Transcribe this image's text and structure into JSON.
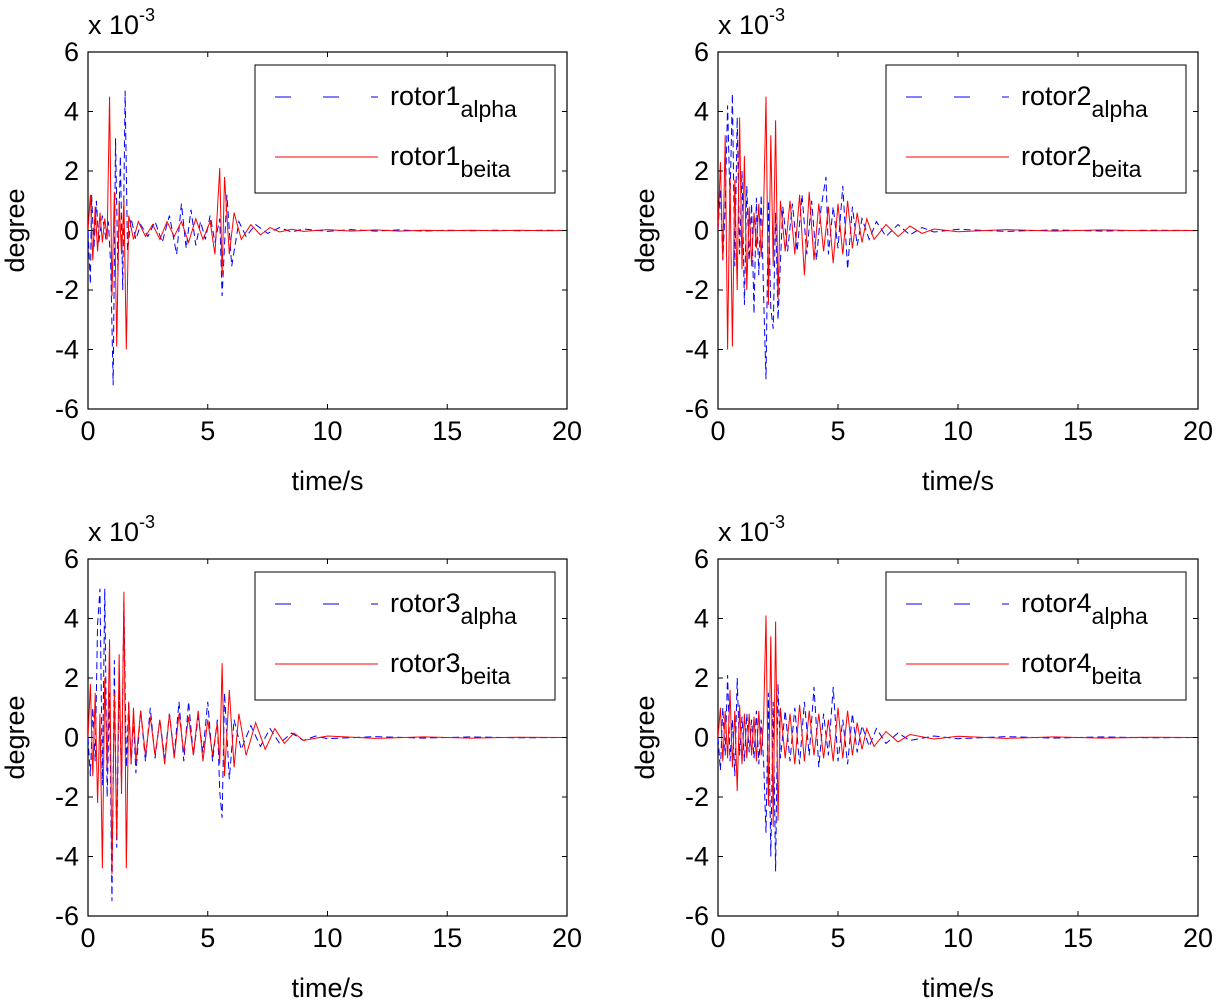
{
  "colors": {
    "alpha": "#0000ff",
    "beita": "#ff0000",
    "axes": "#000000",
    "background": "#ffffff"
  },
  "chart_data": [
    {
      "type": "line",
      "title": "",
      "xlabel": "time/s",
      "ylabel": "degree",
      "exponent_prefix": "x 10",
      "exponent_power": "-3",
      "xlim": [
        0,
        20
      ],
      "ylim": [
        -6,
        6
      ],
      "x_ticks": [
        "0",
        "5",
        "10",
        "15",
        "20"
      ],
      "y_ticks": [
        "-6",
        "-4",
        "-2",
        "0",
        "2",
        "4",
        "6"
      ],
      "grid": false,
      "legend_position": "top-right",
      "series": [
        {
          "name": "rotor1 alpha",
          "label_main": "rotor1",
          "label_sub": "alpha",
          "style": "dashed",
          "color": "#0000ff",
          "x": [
            0.0,
            0.1,
            0.15,
            0.25,
            0.35,
            0.45,
            0.6,
            0.75,
            0.85,
            0.95,
            1.05,
            1.15,
            1.25,
            1.35,
            1.45,
            1.55,
            1.65,
            1.8,
            2.0,
            2.2,
            2.5,
            2.8,
            3.1,
            3.4,
            3.7,
            3.9,
            4.1,
            4.3,
            4.5,
            4.7,
            4.9,
            5.1,
            5.3,
            5.5,
            5.6,
            5.8,
            6.0,
            6.3,
            6.6,
            7.0,
            7.5,
            8.0,
            8.5,
            9.0,
            10.0,
            11.0,
            12.0,
            13.0,
            14.0,
            15.0,
            16.0,
            17.0,
            18.0,
            19.0,
            20.0
          ],
          "y": [
            0.0,
            -1.8,
            1.2,
            -0.6,
            1.0,
            -0.4,
            0.5,
            -0.3,
            0.3,
            -1.2,
            -5.2,
            3.1,
            -1.5,
            2.5,
            -2.0,
            4.7,
            -0.7,
            0.4,
            -0.3,
            0.2,
            -0.2,
            0.3,
            -0.4,
            0.5,
            -0.8,
            0.9,
            -0.6,
            0.7,
            -0.5,
            0.3,
            -0.3,
            0.5,
            -0.4,
            0.4,
            -2.2,
            1.2,
            -1.2,
            0.3,
            -0.2,
            0.2,
            -0.1,
            0.1,
            -0.05,
            0.05,
            -0.03,
            0.03,
            -0.02,
            0.02,
            -0.02,
            0.01,
            -0.01,
            0.01,
            -0.01,
            0.01,
            0.0
          ]
        },
        {
          "name": "rotor1 beita",
          "label_main": "rotor1",
          "label_sub": "beita",
          "style": "solid",
          "color": "#ff0000",
          "x": [
            0.0,
            0.1,
            0.2,
            0.3,
            0.4,
            0.5,
            0.6,
            0.7,
            0.8,
            0.9,
            1.0,
            1.1,
            1.2,
            1.3,
            1.4,
            1.5,
            1.6,
            1.7,
            1.9,
            2.1,
            2.4,
            2.7,
            3.0,
            3.3,
            3.6,
            3.9,
            4.2,
            4.5,
            4.8,
            5.1,
            5.3,
            5.5,
            5.6,
            5.7,
            5.9,
            6.1,
            6.4,
            6.8,
            7.2,
            7.6,
            8.0,
            8.5,
            9.0,
            10.0,
            11.0,
            12.0,
            13.0,
            14.0,
            15.0,
            16.0,
            17.0,
            18.0,
            19.0,
            20.0
          ],
          "y": [
            0.0,
            1.2,
            -1.0,
            0.8,
            -0.7,
            0.6,
            -0.4,
            0.4,
            -0.3,
            4.5,
            -2.2,
            1.3,
            -3.9,
            1.0,
            -0.8,
            1.0,
            -4.0,
            0.5,
            -0.3,
            0.3,
            -0.2,
            0.2,
            -0.3,
            0.3,
            -0.2,
            0.3,
            -0.4,
            0.4,
            -0.3,
            0.3,
            -0.8,
            2.1,
            -1.5,
            1.8,
            -0.8,
            0.6,
            -0.3,
            0.2,
            -0.15,
            0.1,
            -0.05,
            0.04,
            -0.03,
            0.03,
            -0.02,
            0.02,
            -0.02,
            0.01,
            -0.01,
            0.01,
            -0.01,
            0.01,
            -0.01,
            0.0
          ]
        }
      ]
    },
    {
      "type": "line",
      "title": "",
      "xlabel": "time/s",
      "ylabel": "degree",
      "exponent_prefix": "x 10",
      "exponent_power": "-3",
      "xlim": [
        0,
        20
      ],
      "ylim": [
        -6,
        6
      ],
      "x_ticks": [
        "0",
        "5",
        "10",
        "15",
        "20"
      ],
      "y_ticks": [
        "-6",
        "-4",
        "-2",
        "0",
        "2",
        "4",
        "6"
      ],
      "grid": false,
      "legend_position": "top-right",
      "series": [
        {
          "name": "rotor2 alpha",
          "label_main": "rotor2",
          "label_sub": "alpha",
          "style": "dashed",
          "color": "#0000ff",
          "x": [
            0.0,
            0.1,
            0.2,
            0.3,
            0.4,
            0.5,
            0.6,
            0.7,
            0.8,
            0.9,
            1.0,
            1.1,
            1.2,
            1.3,
            1.4,
            1.5,
            1.6,
            1.7,
            1.8,
            1.9,
            2.0,
            2.1,
            2.2,
            2.3,
            2.4,
            2.5,
            2.7,
            2.9,
            3.1,
            3.3,
            3.5,
            3.7,
            3.9,
            4.1,
            4.3,
            4.5,
            4.6,
            4.8,
            5.0,
            5.2,
            5.4,
            5.6,
            5.8,
            6.0,
            6.3,
            6.6,
            7.0,
            7.5,
            8.0,
            8.5,
            9.0,
            10.0,
            12.0,
            14.0,
            16.0,
            18.0,
            20.0
          ],
          "y": [
            0.0,
            1.4,
            -1.0,
            0.8,
            4.2,
            1.0,
            4.6,
            -1.2,
            3.8,
            -0.8,
            2.0,
            -2.5,
            1.5,
            -1.0,
            0.9,
            -2.8,
            1.1,
            -1.5,
            1.2,
            -2.2,
            -5.0,
            1.0,
            -2.6,
            -3.3,
            0.6,
            -3.0,
            0.8,
            -0.7,
            0.9,
            -0.7,
            1.2,
            -0.8,
            1.0,
            -1.0,
            0.8,
            1.8,
            -0.8,
            0.8,
            -0.6,
            1.5,
            -1.3,
            0.8,
            -0.5,
            0.4,
            -0.3,
            0.3,
            -0.2,
            0.2,
            -0.15,
            0.1,
            -0.05,
            0.04,
            -0.03,
            0.02,
            -0.02,
            0.01,
            0.0
          ]
        },
        {
          "name": "rotor2 beita",
          "label_main": "rotor2",
          "label_sub": "beita",
          "style": "solid",
          "color": "#ff0000",
          "x": [
            0.0,
            0.1,
            0.2,
            0.3,
            0.4,
            0.5,
            0.6,
            0.7,
            0.8,
            0.9,
            1.0,
            1.1,
            1.2,
            1.3,
            1.4,
            1.5,
            1.6,
            1.7,
            1.8,
            1.9,
            2.0,
            2.1,
            2.2,
            2.3,
            2.4,
            2.5,
            2.6,
            2.8,
            3.0,
            3.2,
            3.4,
            3.6,
            3.8,
            4.0,
            4.2,
            4.4,
            4.6,
            4.8,
            5.0,
            5.2,
            5.4,
            5.6,
            5.8,
            6.0,
            6.2,
            6.5,
            7.0,
            7.5,
            8.0,
            8.5,
            9.0,
            10.0,
            12.0,
            14.0,
            16.0,
            18.0,
            20.0
          ],
          "y": [
            0.0,
            2.3,
            -1.0,
            3.2,
            -4.0,
            1.8,
            -3.9,
            1.7,
            -2.0,
            3.8,
            -1.3,
            2.5,
            -2.0,
            0.8,
            -1.2,
            0.6,
            -0.6,
            0.9,
            -0.9,
            0.7,
            4.5,
            -2.5,
            3.2,
            -1.2,
            3.7,
            -2.3,
            1.0,
            -0.7,
            1.0,
            -0.8,
            1.2,
            -1.5,
            1.3,
            -1.0,
            0.9,
            -0.7,
            0.8,
            -1.1,
            0.9,
            -0.8,
            1.0,
            -0.6,
            0.6,
            -0.4,
            0.4,
            -0.3,
            0.2,
            -0.2,
            0.15,
            -0.1,
            0.05,
            -0.04,
            0.03,
            -0.02,
            0.02,
            -0.01,
            0.0
          ]
        }
      ]
    },
    {
      "type": "line",
      "title": "",
      "xlabel": "time/s",
      "ylabel": "degree",
      "exponent_prefix": "x 10",
      "exponent_power": "-3",
      "xlim": [
        0,
        20
      ],
      "ylim": [
        -6,
        6
      ],
      "x_ticks": [
        "0",
        "5",
        "10",
        "15",
        "20"
      ],
      "y_ticks": [
        "-6",
        "-4",
        "-2",
        "0",
        "2",
        "4",
        "6"
      ],
      "grid": false,
      "legend_position": "top-right",
      "series": [
        {
          "name": "rotor3 alpha",
          "label_main": "rotor3",
          "label_sub": "alpha",
          "style": "dashed",
          "color": "#0000ff",
          "x": [
            0.0,
            0.1,
            0.2,
            0.3,
            0.4,
            0.5,
            0.6,
            0.7,
            0.8,
            0.9,
            1.0,
            1.1,
            1.2,
            1.3,
            1.4,
            1.5,
            1.6,
            1.7,
            1.8,
            1.9,
            2.0,
            2.2,
            2.4,
            2.6,
            2.8,
            3.0,
            3.2,
            3.4,
            3.6,
            3.8,
            4.0,
            4.2,
            4.4,
            4.6,
            4.8,
            5.0,
            5.2,
            5.4,
            5.5,
            5.6,
            5.7,
            5.9,
            6.1,
            6.4,
            6.8,
            7.2,
            7.6,
            8.0,
            8.5,
            9.0,
            9.5,
            10.0,
            12.0,
            14.0,
            16.0,
            18.0,
            20.0
          ],
          "y": [
            0.0,
            -1.3,
            1.0,
            -0.8,
            3.8,
            5.0,
            -1.6,
            5.0,
            -2.0,
            1.5,
            -5.5,
            2.6,
            -3.7,
            1.8,
            -1.5,
            4.6,
            -1.0,
            1.2,
            -0.9,
            0.6,
            -1.2,
            0.9,
            -0.8,
            1.0,
            -0.7,
            0.6,
            -0.7,
            0.8,
            -0.6,
            1.2,
            -0.8,
            1.2,
            -0.6,
            0.7,
            -0.5,
            1.2,
            -0.8,
            0.6,
            -1.8,
            -2.7,
            1.5,
            -1.4,
            0.6,
            -0.4,
            0.4,
            -0.3,
            0.3,
            -0.2,
            0.15,
            -0.1,
            0.05,
            -0.04,
            0.03,
            -0.02,
            0.02,
            -0.01,
            0.0
          ]
        },
        {
          "name": "rotor3 beita",
          "label_main": "rotor3",
          "label_sub": "beita",
          "style": "solid",
          "color": "#ff0000",
          "x": [
            0.0,
            0.1,
            0.2,
            0.3,
            0.4,
            0.5,
            0.6,
            0.7,
            0.8,
            0.9,
            1.0,
            1.1,
            1.2,
            1.3,
            1.4,
            1.5,
            1.6,
            1.7,
            1.8,
            1.9,
            2.0,
            2.2,
            2.4,
            2.6,
            2.8,
            3.0,
            3.2,
            3.4,
            3.6,
            3.8,
            4.0,
            4.2,
            4.4,
            4.6,
            4.8,
            5.0,
            5.2,
            5.4,
            5.5,
            5.6,
            5.7,
            5.9,
            6.1,
            6.3,
            6.6,
            7.0,
            7.4,
            7.8,
            8.2,
            8.6,
            9.0,
            10.0,
            12.0,
            14.0,
            16.0,
            18.0,
            20.0
          ],
          "y": [
            0.0,
            1.8,
            -1.3,
            1.5,
            -2.2,
            0.8,
            -4.4,
            2.0,
            -1.0,
            3.3,
            -4.6,
            1.5,
            -3.4,
            2.8,
            -1.9,
            4.9,
            -4.4,
            1.2,
            -0.9,
            1.0,
            -0.8,
            0.9,
            -0.6,
            0.7,
            -0.6,
            0.6,
            -0.9,
            0.8,
            -0.7,
            0.8,
            -0.5,
            0.7,
            -0.6,
            0.9,
            -0.8,
            0.6,
            -0.6,
            0.5,
            -0.9,
            2.5,
            -1.3,
            1.6,
            -1.0,
            0.8,
            -0.6,
            0.5,
            -0.4,
            0.3,
            -0.2,
            0.15,
            -0.1,
            0.05,
            -0.03,
            0.02,
            -0.02,
            0.01,
            0.0
          ]
        }
      ]
    },
    {
      "type": "line",
      "title": "",
      "xlabel": "time/s",
      "ylabel": "degree",
      "exponent_prefix": "x 10",
      "exponent_power": "-3",
      "xlim": [
        0,
        20
      ],
      "ylim": [
        -6,
        6
      ],
      "x_ticks": [
        "0",
        "5",
        "10",
        "15",
        "20"
      ],
      "y_ticks": [
        "-6",
        "-4",
        "-2",
        "0",
        "2",
        "4",
        "6"
      ],
      "grid": false,
      "legend_position": "top-right",
      "series": [
        {
          "name": "rotor4 alpha",
          "label_main": "rotor4",
          "label_sub": "alpha",
          "style": "dashed",
          "color": "#0000ff",
          "x": [
            0.0,
            0.1,
            0.2,
            0.3,
            0.4,
            0.5,
            0.6,
            0.7,
            0.8,
            0.9,
            1.0,
            1.1,
            1.2,
            1.3,
            1.4,
            1.5,
            1.6,
            1.7,
            1.8,
            1.9,
            2.0,
            2.1,
            2.2,
            2.3,
            2.4,
            2.5,
            2.6,
            2.8,
            3.0,
            3.2,
            3.4,
            3.6,
            3.8,
            4.0,
            4.2,
            4.4,
            4.6,
            4.8,
            5.0,
            5.2,
            5.4,
            5.6,
            5.8,
            6.0,
            6.3,
            6.6,
            7.0,
            7.5,
            8.0,
            9.0,
            10.0,
            12.0,
            14.0,
            16.0,
            18.0,
            20.0
          ],
          "y": [
            0.0,
            -1.1,
            1.0,
            -0.6,
            2.1,
            -0.8,
            0.6,
            -1.3,
            2.0,
            -0.6,
            0.7,
            -0.8,
            0.8,
            -0.5,
            0.6,
            -0.7,
            0.9,
            -0.9,
            0.6,
            -0.8,
            -3.2,
            1.5,
            -4.0,
            1.2,
            -4.5,
            1.8,
            -0.7,
            0.9,
            -0.8,
            1.0,
            -0.9,
            1.2,
            -0.6,
            1.7,
            -1.0,
            0.8,
            -0.6,
            1.7,
            -0.8,
            0.6,
            -0.9,
            0.8,
            -0.5,
            0.4,
            -0.3,
            0.3,
            -0.2,
            0.15,
            -0.1,
            0.05,
            -0.04,
            0.03,
            -0.02,
            0.02,
            -0.01,
            0.0
          ]
        },
        {
          "name": "rotor4 beita",
          "label_main": "rotor4",
          "label_sub": "beita",
          "style": "solid",
          "color": "#ff0000",
          "x": [
            0.0,
            0.1,
            0.2,
            0.3,
            0.4,
            0.5,
            0.6,
            0.7,
            0.8,
            0.9,
            1.0,
            1.1,
            1.2,
            1.3,
            1.4,
            1.5,
            1.6,
            1.7,
            1.8,
            1.9,
            2.0,
            2.1,
            2.2,
            2.3,
            2.4,
            2.5,
            2.6,
            2.8,
            3.0,
            3.2,
            3.4,
            3.6,
            3.8,
            4.0,
            4.2,
            4.4,
            4.6,
            4.8,
            5.0,
            5.2,
            5.4,
            5.6,
            5.8,
            6.0,
            6.2,
            6.5,
            7.0,
            7.5,
            8.0,
            9.0,
            10.0,
            12.0,
            14.0,
            16.0,
            18.0,
            20.0
          ],
          "y": [
            0.0,
            1.0,
            -0.8,
            0.9,
            -0.7,
            1.6,
            -1.0,
            0.9,
            -1.8,
            1.1,
            -0.9,
            0.8,
            -0.7,
            0.8,
            -0.6,
            0.7,
            -0.8,
            0.9,
            -0.6,
            0.6,
            4.1,
            -2.3,
            3.4,
            -3.0,
            3.9,
            -2.8,
            1.0,
            -0.7,
            0.8,
            -0.9,
            1.1,
            -0.8,
            0.9,
            -0.6,
            0.8,
            -0.7,
            0.6,
            -0.8,
            1.0,
            -0.7,
            0.9,
            -0.6,
            0.5,
            -0.4,
            0.3,
            -0.3,
            0.2,
            -0.15,
            0.1,
            -0.05,
            0.04,
            -0.03,
            0.02,
            -0.02,
            0.01,
            0.0
          ]
        }
      ]
    }
  ]
}
